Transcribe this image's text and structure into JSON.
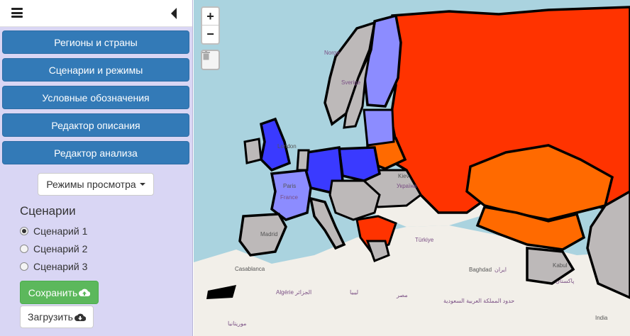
{
  "sidebar": {
    "nav": [
      {
        "label": "Регионы и страны"
      },
      {
        "label": "Сценарии и режимы"
      },
      {
        "label": "Условные обозначения"
      },
      {
        "label": "Редактор описания"
      },
      {
        "label": "Редактор анализа"
      }
    ],
    "view_modes_label": "Режимы просмотра",
    "scenarios_title": "Сценарии",
    "scenarios": [
      {
        "label": "Сценарий 1",
        "checked": true
      },
      {
        "label": "Сценарий 2",
        "checked": false
      },
      {
        "label": "Сценарий 3",
        "checked": false
      }
    ],
    "save_label": "Сохранить",
    "load_label": "Загрузить"
  },
  "map": {
    "zoom_in": "+",
    "zoom_out": "−",
    "labels": {
      "norge": "Norge",
      "sverige": "Sverige",
      "london": "London",
      "paris": "Paris",
      "france": "France",
      "kiev": "Kiev",
      "ukraina": "Україна",
      "madrid": "Madrid",
      "turkiye": "Türkiye",
      "casablanca": "Casablanca",
      "algerie": "Algérie الجزائر",
      "libya": "ليبيا",
      "misr": "مصر",
      "baghdad": "Baghdad",
      "iran": "ایران",
      "saudi": "حدود المملكة العربية السعودية",
      "morocco": "موريتانيا",
      "pakistan": "پاکستان",
      "india": "India",
      "kabul": "Kabul"
    }
  },
  "colors": {
    "nav_blue": "#337ab7",
    "russia_red": "#ff3300",
    "orange": "#ff6a00",
    "blue_strong": "#3a3aff",
    "blue_light": "#8c8cff",
    "gray": "#bdb9b9",
    "save_green": "#5cb85c",
    "sidebar_bg": "#d9d6f4"
  }
}
